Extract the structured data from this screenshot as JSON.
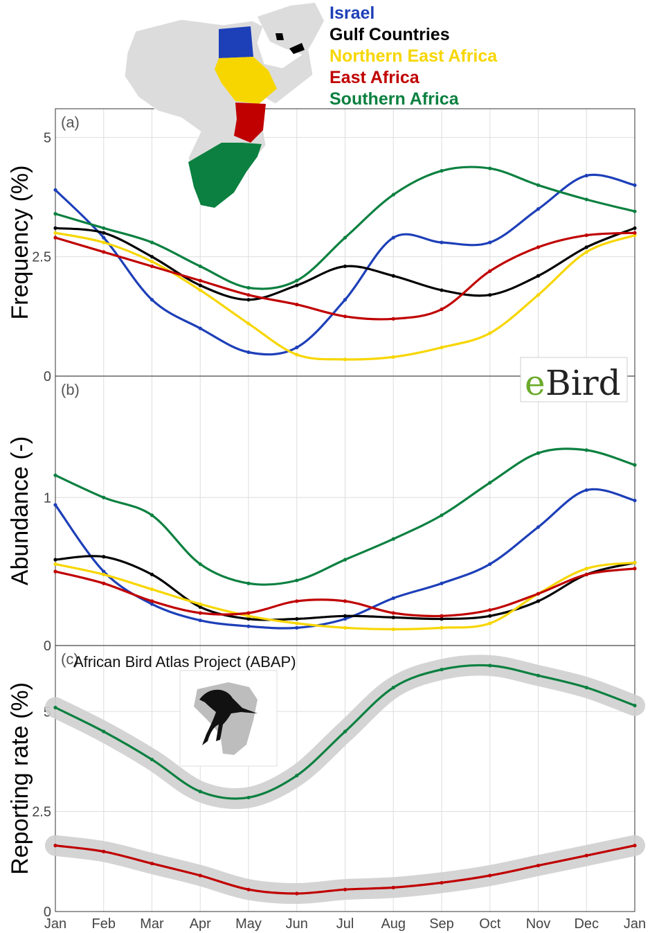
{
  "legend": {
    "items": [
      {
        "label": "Israel",
        "color": "#1d3fb8"
      },
      {
        "label": "Gulf Countries",
        "color": "#000000"
      },
      {
        "label": "Northern East Africa",
        "color": "#f7d600"
      },
      {
        "label": "East Africa",
        "color": "#c00000"
      },
      {
        "label": "Southern Africa",
        "color": "#0b8040"
      }
    ]
  },
  "logos": {
    "ebird_e": "e",
    "ebird_rest": "Bird",
    "abap_title": "African Bird Atlas Project (ABAP)"
  },
  "chart_data": [
    {
      "type": "line",
      "panel": "(a)",
      "ylabel": "Frequency (%)",
      "yticks": [
        "0",
        "2.5",
        "5"
      ],
      "ylim": [
        0,
        5.6
      ],
      "categories": [
        "Jan",
        "Feb",
        "Mar",
        "Apr",
        "May",
        "Jun",
        "Jul",
        "Aug",
        "Sep",
        "Oct",
        "Nov",
        "Dec",
        "Jan"
      ],
      "series": [
        {
          "name": "Israel",
          "color": "#1d3fb8",
          "x": [
            0,
            1,
            2,
            3,
            4,
            5,
            6,
            7,
            8,
            9,
            10,
            11,
            12
          ],
          "values": [
            3.9,
            2.9,
            1.6,
            1.0,
            0.5,
            0.6,
            1.6,
            2.9,
            2.8,
            2.8,
            3.5,
            4.2,
            4.0
          ]
        },
        {
          "name": "Gulf Countries",
          "color": "#000000",
          "x": [
            0,
            1,
            2,
            3,
            4,
            5,
            6,
            7,
            8,
            9,
            10,
            11,
            12
          ],
          "values": [
            3.1,
            3.0,
            2.5,
            1.9,
            1.6,
            1.9,
            2.3,
            2.1,
            1.8,
            1.7,
            2.1,
            2.7,
            3.1
          ]
        },
        {
          "name": "Northern East Africa",
          "color": "#f7d600",
          "x": [
            0,
            1,
            2,
            3,
            4,
            5,
            6,
            7,
            8,
            9,
            10,
            11,
            12
          ],
          "values": [
            3.0,
            2.8,
            2.4,
            1.8,
            1.1,
            0.45,
            0.35,
            0.4,
            0.6,
            0.9,
            1.7,
            2.6,
            2.95
          ]
        },
        {
          "name": "East Africa",
          "color": "#c00000",
          "x": [
            0,
            1,
            2,
            3,
            4,
            5,
            6,
            7,
            8,
            9,
            10,
            11,
            12
          ],
          "values": [
            2.9,
            2.6,
            2.3,
            2.0,
            1.7,
            1.5,
            1.25,
            1.2,
            1.4,
            2.2,
            2.7,
            2.95,
            3.0
          ]
        },
        {
          "name": "Southern Africa",
          "color": "#0b8040",
          "x": [
            0,
            1,
            2,
            3,
            4,
            5,
            6,
            7,
            8,
            9,
            10,
            11,
            12
          ],
          "values": [
            3.4,
            3.1,
            2.8,
            2.3,
            1.85,
            2.0,
            2.9,
            3.8,
            4.3,
            4.35,
            4.0,
            3.7,
            3.45
          ]
        }
      ]
    },
    {
      "type": "line",
      "panel": "(b)",
      "ylabel": "Abundance (-)",
      "yticks": [
        "0",
        "1"
      ],
      "ylim": [
        0,
        1.82
      ],
      "categories": [
        "Jan",
        "Feb",
        "Mar",
        "Apr",
        "May",
        "Jun",
        "Jul",
        "Aug",
        "Sep",
        "Oct",
        "Nov",
        "Dec",
        "Jan"
      ],
      "series": [
        {
          "name": "Israel",
          "color": "#1d3fb8",
          "x": [
            0,
            1,
            2,
            3,
            4,
            5,
            6,
            7,
            8,
            9,
            10,
            11,
            12
          ],
          "values": [
            0.95,
            0.5,
            0.28,
            0.17,
            0.13,
            0.12,
            0.18,
            0.32,
            0.42,
            0.55,
            0.8,
            1.05,
            0.98
          ]
        },
        {
          "name": "Gulf Countries",
          "color": "#000000",
          "x": [
            0,
            1,
            2,
            3,
            4,
            5,
            6,
            7,
            8,
            9,
            10,
            11,
            12
          ],
          "values": [
            0.58,
            0.6,
            0.48,
            0.26,
            0.18,
            0.18,
            0.2,
            0.19,
            0.18,
            0.2,
            0.3,
            0.48,
            0.56
          ]
        },
        {
          "name": "Northern East Africa",
          "color": "#f7d600",
          "x": [
            0,
            1,
            2,
            3,
            4,
            5,
            6,
            7,
            8,
            9,
            10,
            11,
            12
          ],
          "values": [
            0.55,
            0.48,
            0.38,
            0.28,
            0.2,
            0.15,
            0.12,
            0.11,
            0.12,
            0.15,
            0.35,
            0.52,
            0.56
          ]
        },
        {
          "name": "East Africa",
          "color": "#c00000",
          "x": [
            0,
            1,
            2,
            3,
            4,
            5,
            6,
            7,
            8,
            9,
            10,
            11,
            12
          ],
          "values": [
            0.5,
            0.42,
            0.3,
            0.22,
            0.22,
            0.3,
            0.3,
            0.22,
            0.2,
            0.24,
            0.35,
            0.48,
            0.52
          ]
        },
        {
          "name": "Southern Africa",
          "color": "#0b8040",
          "x": [
            0,
            1,
            2,
            3,
            4,
            5,
            6,
            7,
            8,
            9,
            10,
            11,
            12
          ],
          "values": [
            1.15,
            1.0,
            0.88,
            0.55,
            0.42,
            0.44,
            0.58,
            0.72,
            0.88,
            1.1,
            1.3,
            1.32,
            1.22
          ]
        }
      ]
    },
    {
      "type": "line",
      "panel": "(c)",
      "ylabel": "Reporting rate (%)",
      "yticks": [
        "0",
        "2.5",
        "5"
      ],
      "ylim": [
        0,
        6.65
      ],
      "categories": [
        "Jan",
        "Feb",
        "Mar",
        "Apr",
        "May",
        "Jun",
        "Jul",
        "Aug",
        "Sep",
        "Oct",
        "Nov",
        "Dec",
        "Jan"
      ],
      "series": [
        {
          "name": "Southern Africa",
          "color": "#0b8040",
          "x": [
            0,
            1,
            2,
            3,
            4,
            5,
            6,
            7,
            8,
            9,
            10,
            11,
            12
          ],
          "values": [
            5.1,
            4.5,
            3.8,
            3.0,
            2.85,
            3.4,
            4.5,
            5.6,
            6.05,
            6.15,
            5.9,
            5.6,
            5.15
          ]
        },
        {
          "name": "East Africa",
          "color": "#c00000",
          "x": [
            0,
            1,
            2,
            3,
            4,
            5,
            6,
            7,
            8,
            9,
            10,
            11,
            12
          ],
          "values": [
            1.65,
            1.5,
            1.2,
            0.9,
            0.55,
            0.45,
            0.55,
            0.6,
            0.72,
            0.9,
            1.15,
            1.4,
            1.65
          ]
        }
      ]
    }
  ],
  "x_labels": [
    "Jan",
    "Feb",
    "Mar",
    "Apr",
    "May",
    "Jun",
    "Jul",
    "Aug",
    "Sep",
    "Oct",
    "Nov",
    "Dec",
    "Jan"
  ]
}
